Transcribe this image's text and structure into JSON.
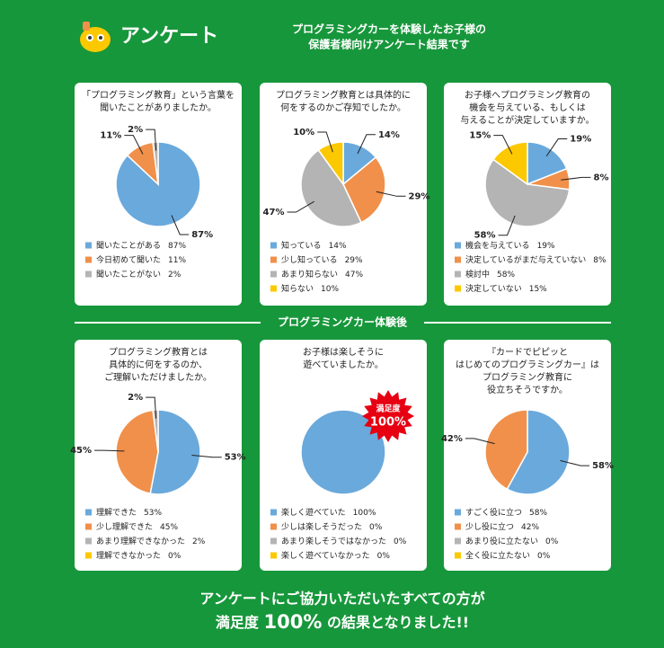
{
  "header": {
    "title": "アンケート",
    "subtitle": [
      "プログラミングカーを体験したお子様の",
      "保護者様向けアンケート結果です"
    ]
  },
  "divider": "プログラミングカー体験後",
  "footer": {
    "line1": "アンケートにご協力いただいたすべての方が",
    "line2": [
      "満足度",
      "100%",
      "の結果となりました!!"
    ]
  },
  "chart_data": [
    {
      "type": "pie",
      "title": [
        "「プログラミング教育」という言葉を",
        "聞いたことがありましたか。"
      ],
      "categories": [
        "聞いたことがある",
        "今日初めて聞いた",
        "聞いたことがない"
      ],
      "values": [
        87,
        11,
        2
      ],
      "value_labels": [
        "87%",
        "11%",
        "2%"
      ],
      "colors": [
        "#6aa9dc",
        "#f0904a",
        "#b4b4b4"
      ]
    },
    {
      "type": "pie",
      "title": [
        "プログラミング教育とは具体的に",
        "何をするのかご存知でしたか。"
      ],
      "categories": [
        "知っている",
        "少し知っている",
        "あまり知らない",
        "知らない"
      ],
      "values": [
        14,
        29,
        47,
        10
      ],
      "value_labels": [
        "14%",
        "29%",
        "47%",
        "10%"
      ],
      "colors": [
        "#6aa9dc",
        "#f0904a",
        "#b4b4b4",
        "#fcc800"
      ]
    },
    {
      "type": "pie",
      "title": [
        "お子様へプログラミング教育の",
        "機会を与えている、もしくは",
        "与えることが決定していますか。"
      ],
      "categories": [
        "機会を与えている",
        "決定しているがまだ与えていない",
        "検討中",
        "決定していない"
      ],
      "values": [
        19,
        8,
        58,
        15
      ],
      "value_labels": [
        "19%",
        "8%",
        "58%",
        "15%"
      ],
      "colors": [
        "#6aa9dc",
        "#f0904a",
        "#b4b4b4",
        "#fcc800"
      ]
    },
    {
      "type": "pie",
      "title": [
        "プログラミング教育とは",
        "具体的に何をするのか、",
        "ご理解いただけましたか。"
      ],
      "categories": [
        "理解できた",
        "少し理解できた",
        "あまり理解できなかった",
        "理解できなかった"
      ],
      "values": [
        53,
        45,
        2,
        0
      ],
      "value_labels": [
        "53%",
        "45%",
        "2%",
        "0%"
      ],
      "colors": [
        "#6aa9dc",
        "#f0904a",
        "#b4b4b4",
        "#fcc800"
      ]
    },
    {
      "type": "pie",
      "title": [
        "お子様は楽しそうに",
        "遊べていましたか。"
      ],
      "categories": [
        "楽しく遊べていた",
        "少しは楽しそうだった",
        "あまり楽しそうではなかった",
        "楽しく遊べていなかった"
      ],
      "values": [
        100,
        0,
        0,
        0
      ],
      "value_labels": [
        "100%",
        "0%",
        "0%",
        "0%"
      ],
      "colors": [
        "#6aa9dc",
        "#f0904a",
        "#b4b4b4",
        "#fcc800"
      ],
      "annotation": [
        "満足度",
        "100%"
      ]
    },
    {
      "type": "pie",
      "title": [
        "『カードでピピッと",
        "はじめてのプログラミングカー』は",
        "プログラミング教育に",
        "役立ちそうですか。"
      ],
      "categories": [
        "すごく役に立つ",
        "少し役に立つ",
        "あまり役に立たない",
        "全く役に立たない"
      ],
      "values": [
        58,
        42,
        0,
        0
      ],
      "value_labels": [
        "58%",
        "42%",
        "0%",
        "0%"
      ],
      "colors": [
        "#6aa9dc",
        "#f0904a",
        "#b4b4b4",
        "#fcc800"
      ]
    }
  ]
}
